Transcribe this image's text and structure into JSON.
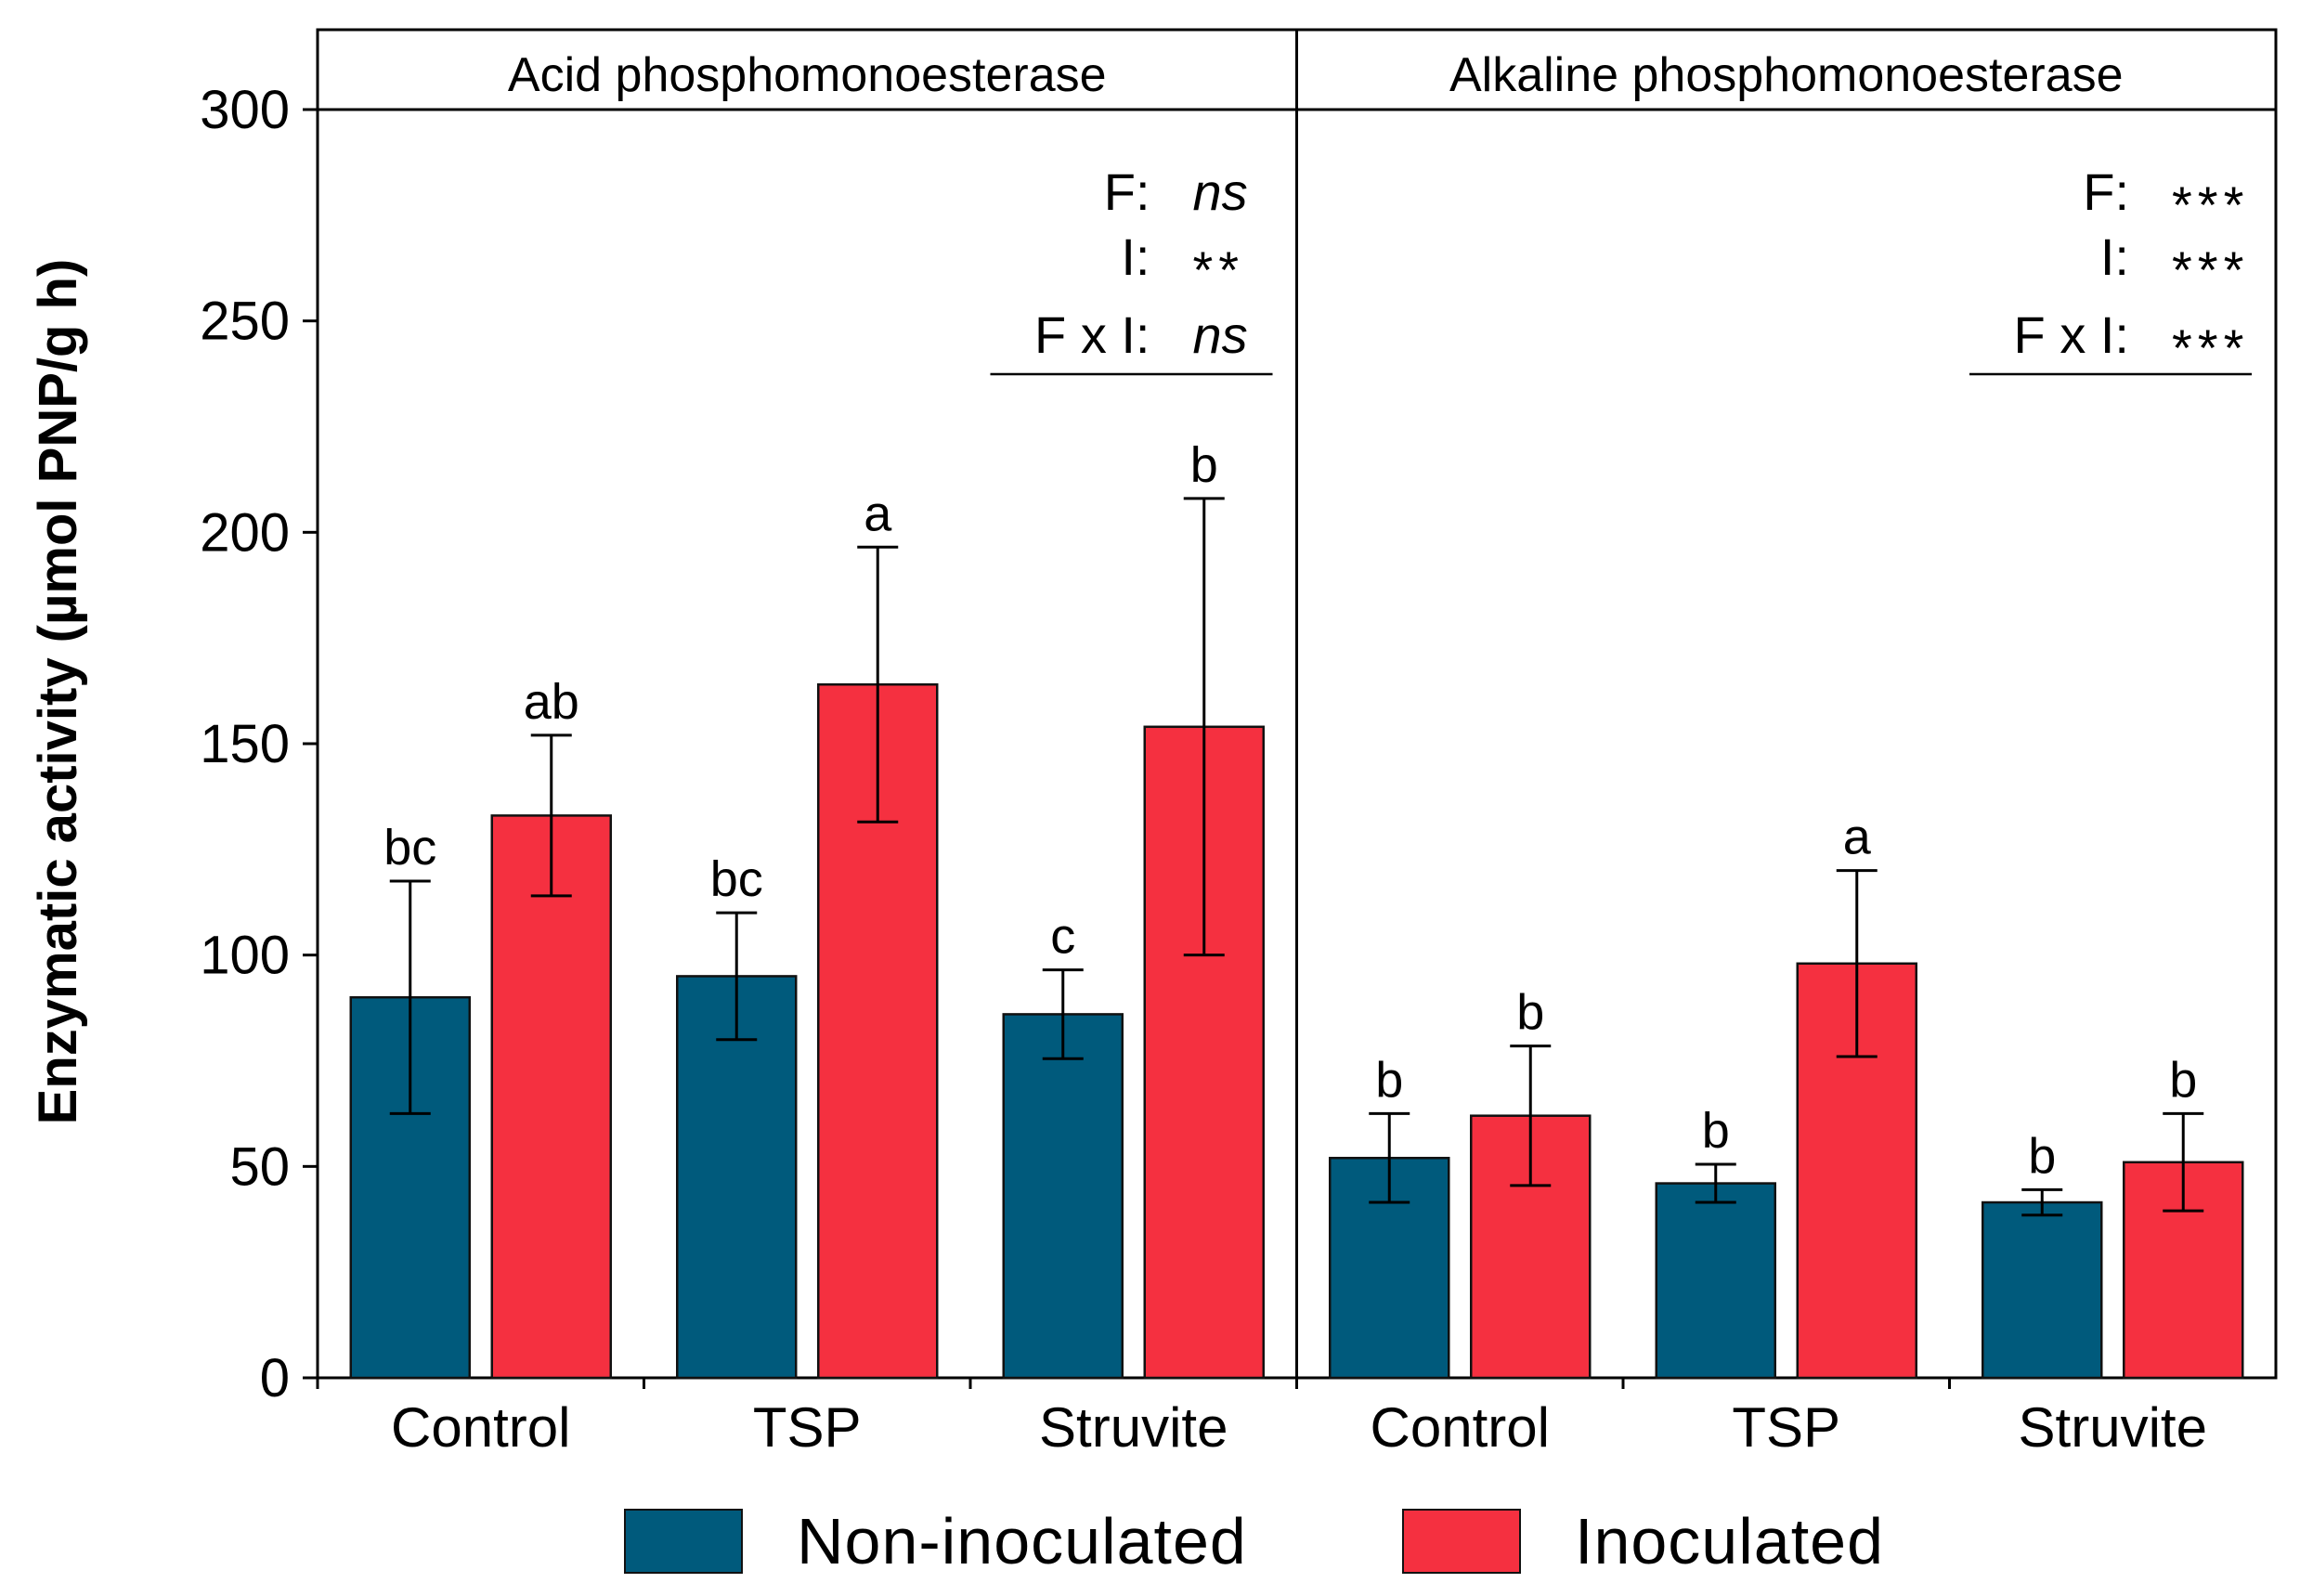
{
  "chart_data": {
    "type": "bar",
    "ylabel": "Enzymatic activity (µmol PNP/g h)",
    "ylim": [
      0,
      300
    ],
    "yticks": [
      0,
      50,
      100,
      150,
      200,
      250,
      300
    ],
    "colors": {
      "Non-inoculated": "#005a7c",
      "Inoculated": "#f53040"
    },
    "legend": {
      "placement": "bottom",
      "entries": [
        "Non-inoculated",
        "Inoculated"
      ]
    },
    "panels": [
      {
        "title": "Acid phosphomonoesterase",
        "categories": [
          "Control",
          "TSP",
          "Struvite"
        ],
        "series": [
          {
            "name": "Non-inoculated",
            "values": [
              90,
              95,
              86
            ],
            "errors": [
              27.5,
              15,
              10.5
            ],
            "letters": [
              "bc",
              "bc",
              "c"
            ]
          },
          {
            "name": "Inoculated",
            "values": [
              133,
              164,
              154
            ],
            "errors": [
              19,
              32.5,
              54
            ],
            "letters": [
              "ab",
              "a",
              "b"
            ]
          }
        ],
        "stats": [
          {
            "term": "F:",
            "value": "ns",
            "italic": true
          },
          {
            "term": "I:",
            "value": "**",
            "italic": false
          },
          {
            "term": "F x I:",
            "value": "ns",
            "italic": true
          }
        ]
      },
      {
        "title": "Alkaline phosphomonoesterase",
        "categories": [
          "Control",
          "TSP",
          "Struvite"
        ],
        "series": [
          {
            "name": "Non-inoculated",
            "values": [
              52,
              46,
              41.5
            ],
            "errors": [
              10.5,
              4.5,
              3
            ],
            "letters": [
              "b",
              "b",
              "b"
            ]
          },
          {
            "name": "Inoculated",
            "values": [
              62,
              98,
              51
            ],
            "errors": [
              16.5,
              22,
              11.5
            ],
            "letters": [
              "b",
              "a",
              "b"
            ]
          }
        ],
        "stats": [
          {
            "term": "F:",
            "value": "***",
            "italic": false
          },
          {
            "term": "I:",
            "value": "***",
            "italic": false
          },
          {
            "term": "F x I:",
            "value": "***",
            "italic": false
          }
        ]
      }
    ]
  }
}
